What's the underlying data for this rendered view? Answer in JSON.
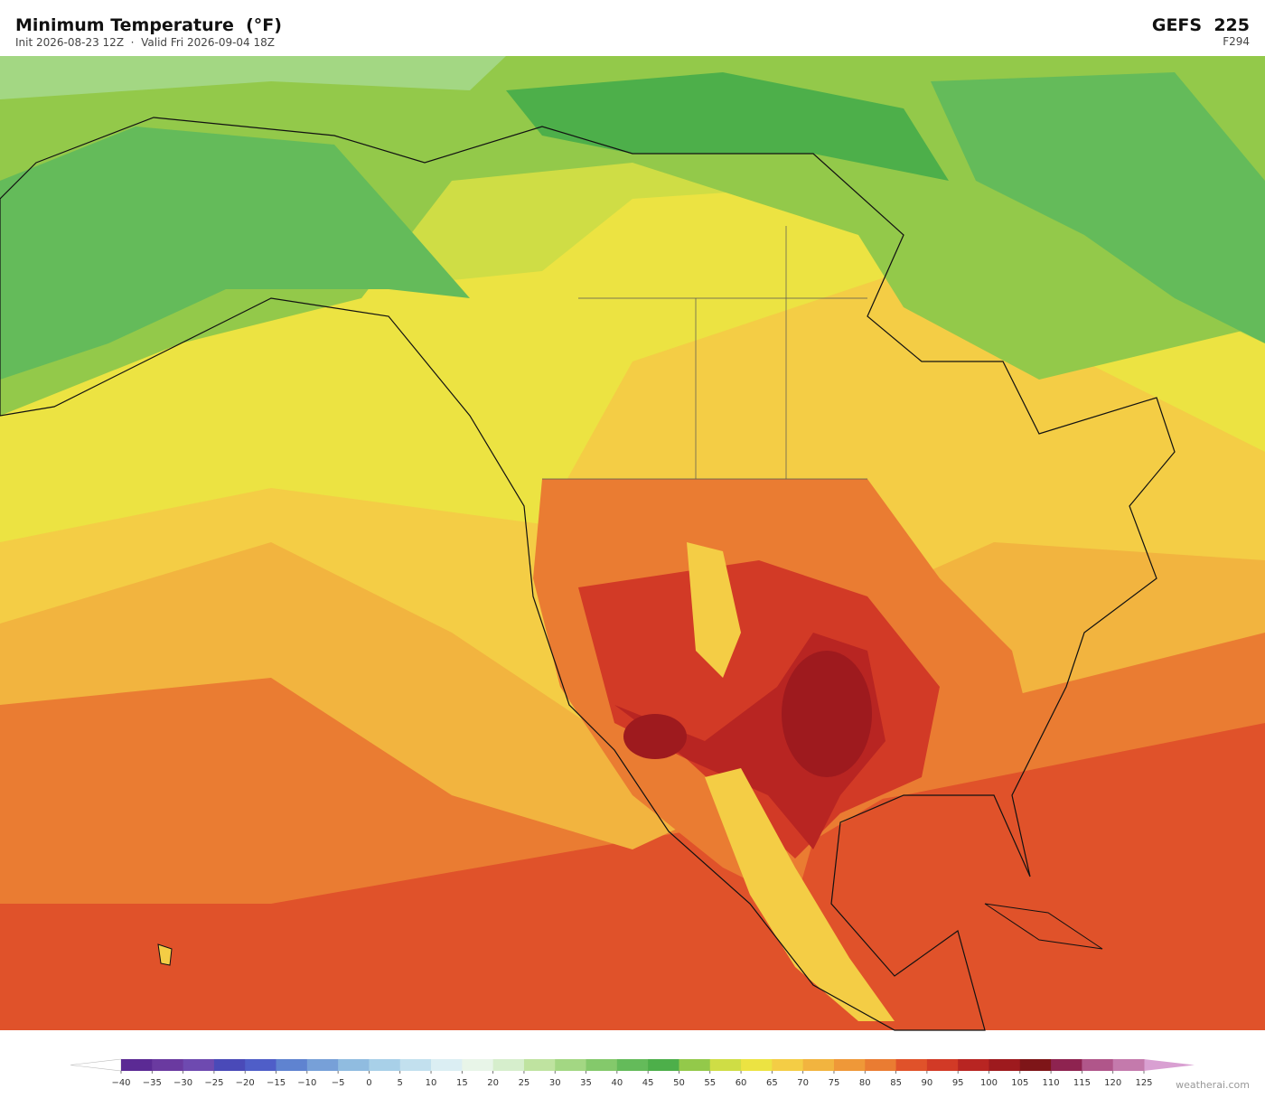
{
  "header": {
    "title": "Minimum Temperature  (°F)",
    "subtitle": "Init 2026-08-23 12Z  ·  Valid Fri 2026-09-04 18Z",
    "model": "GEFS  225",
    "forecast_hour": "F294"
  },
  "colorbar": {
    "ticks": [
      {
        "value": -40,
        "label": "−40"
      },
      {
        "value": -35,
        "label": "−35"
      },
      {
        "value": -30,
        "label": "−30"
      },
      {
        "value": -25,
        "label": "−25"
      },
      {
        "value": -20,
        "label": "−20"
      },
      {
        "value": -15,
        "label": "−15"
      },
      {
        "value": -10,
        "label": "−10"
      },
      {
        "value": -5,
        "label": "−5"
      },
      0,
      5,
      10,
      15,
      20,
      25,
      30,
      35,
      40,
      45,
      50,
      55,
      60,
      65,
      70,
      75,
      80,
      85,
      90,
      95,
      100,
      105,
      110,
      115,
      120,
      125
    ],
    "colors": [
      "#5b2a94",
      "#6a3aa0",
      "#6e4ab0",
      "#4a4ab8",
      "#4f5ec8",
      "#5f83d0",
      "#77a0d8",
      "#90bce0",
      "#a8d0e8",
      "#c2e0ee",
      "#dbeef3",
      "#e8f5e8",
      "#d6eecc",
      "#bfe3a0",
      "#a3d783",
      "#84c96b",
      "#64bb5a",
      "#4daf4a",
      "#93c94a",
      "#cfdd45",
      "#ece342",
      "#f4cd45",
      "#f2b43f",
      "#ef9838",
      "#ea7c32",
      "#e0522a",
      "#d23a26",
      "#b82522",
      "#9e1a1e",
      "#7e1518",
      "#8e2350",
      "#b0568a",
      "#c47aac"
    ],
    "under_color": "#ffffff",
    "over_color": "#d9a0d2"
  },
  "footer": {
    "credit": "weatherai.com"
  }
}
